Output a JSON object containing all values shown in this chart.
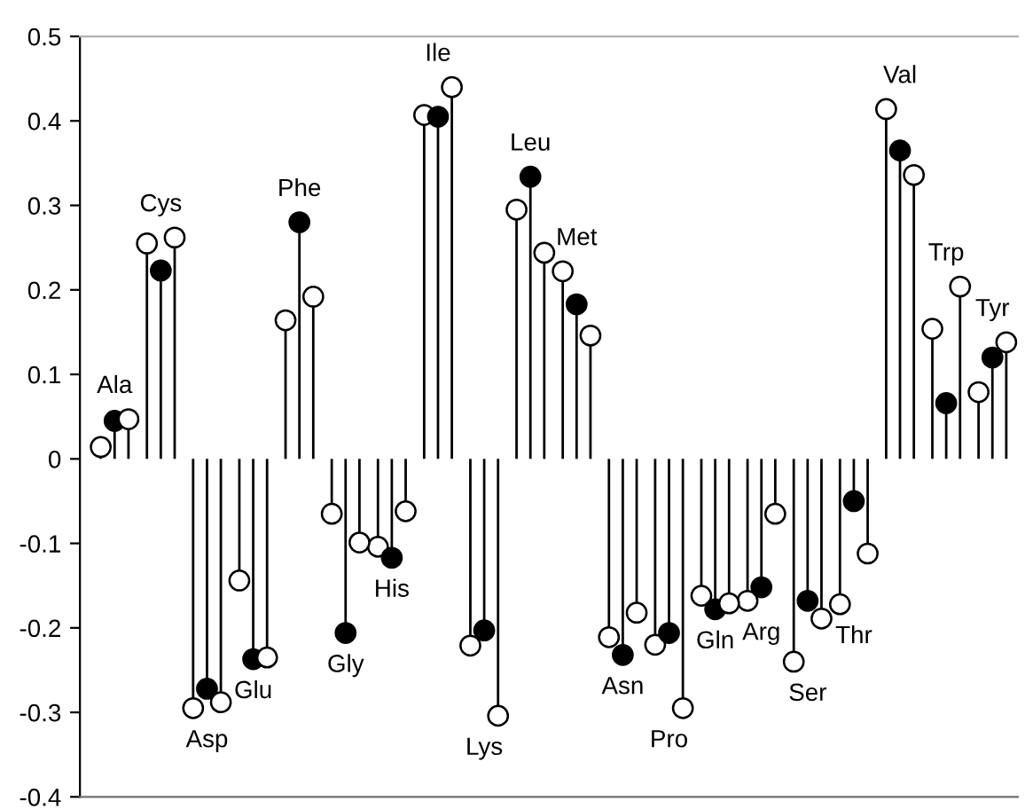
{
  "chart_data": {
    "type": "lollipop",
    "categories": [
      "Ala",
      "Cys",
      "Asp",
      "Glu",
      "Phe",
      "Gly",
      "His",
      "Ile",
      "Lys",
      "Leu",
      "Met",
      "Asn",
      "Pro",
      "Gln",
      "Arg",
      "Ser",
      "Thr",
      "Val",
      "Trp",
      "Tyr"
    ],
    "series": [
      {
        "color": "#ffffff",
        "values": [
          0.014,
          0.255,
          -0.295,
          -0.144,
          0.164,
          -0.065,
          -0.104,
          0.407,
          -0.221,
          0.295,
          0.222,
          -0.211,
          -0.22,
          -0.162,
          -0.168,
          -0.24,
          -0.172,
          0.414,
          0.154,
          0.079
        ]
      },
      {
        "color": "#000000",
        "values": [
          0.045,
          0.223,
          -0.272,
          -0.237,
          0.28,
          -0.206,
          -0.117,
          0.405,
          -0.203,
          0.334,
          0.183,
          -0.232,
          -0.206,
          -0.178,
          -0.152,
          -0.168,
          -0.05,
          0.365,
          0.066,
          0.12
        ]
      },
      {
        "color": "#ffffff",
        "values": [
          0.047,
          0.262,
          -0.288,
          -0.235,
          0.192,
          -0.099,
          -0.062,
          0.44,
          -0.304,
          0.244,
          0.146,
          -0.182,
          -0.295,
          -0.171,
          -0.065,
          -0.189,
          -0.112,
          0.336,
          0.204,
          0.138
        ]
      }
    ],
    "ylim": [
      -0.4,
      0.5
    ],
    "yticks": [
      {
        "value": -0.4,
        "label": "-0.4"
      },
      {
        "value": -0.3,
        "label": "-0.3"
      },
      {
        "value": -0.2,
        "label": "-0.2"
      },
      {
        "value": -0.1,
        "label": "-0.1"
      },
      0,
      0.1,
      0.2,
      0.3,
      0.4,
      0.5
    ],
    "marker": "circle",
    "grid": false
  }
}
